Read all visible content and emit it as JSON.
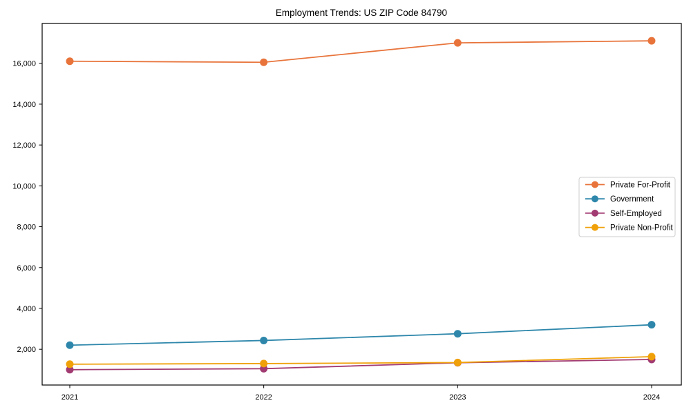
{
  "chart_data": {
    "type": "line",
    "title": "Employment Trends: US ZIP Code 84790",
    "x": [
      "2021",
      "2022",
      "2023",
      "2024"
    ],
    "xlabel": "",
    "ylabel": "",
    "ylim": [
      250,
      17950
    ],
    "yticks": [
      2000,
      4000,
      6000,
      8000,
      10000,
      12000,
      14000,
      16000
    ],
    "grid": false,
    "legend_position": "center-right",
    "series": [
      {
        "name": "Private For-Profit",
        "color": "#E8743B",
        "values": [
          16100,
          16050,
          17000,
          17100
        ]
      },
      {
        "name": "Government",
        "color": "#2E87AB",
        "values": [
          2200,
          2430,
          2760,
          3200
        ]
      },
      {
        "name": "Self-Employed",
        "color": "#A23B72",
        "values": [
          1000,
          1050,
          1340,
          1500
        ]
      },
      {
        "name": "Private Non-Profit",
        "color": "#F0A10A",
        "values": [
          1270,
          1300,
          1350,
          1640
        ]
      }
    ]
  }
}
